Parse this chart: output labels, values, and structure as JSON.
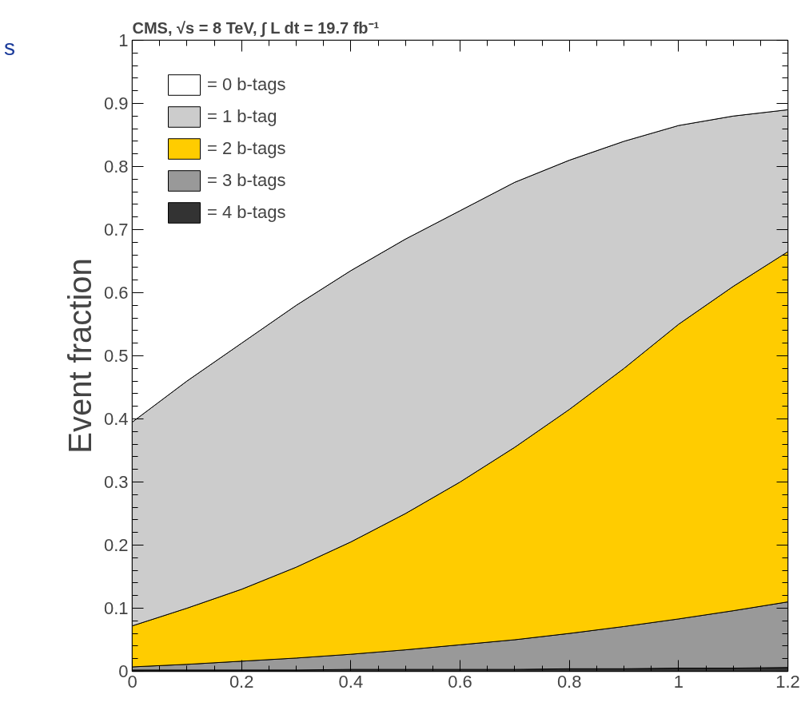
{
  "chart_data": {
    "type": "area",
    "stacked": true,
    "title": "CMS,  √s = 8 TeV, ∫ L dt = 19.7 fb⁻¹",
    "ylabel": "Event fraction",
    "annotations": [
      "s"
    ],
    "x": [
      0,
      0.1,
      0.2,
      0.3,
      0.4,
      0.5,
      0.6,
      0.7,
      0.8,
      0.9,
      1.0,
      1.1,
      1.2
    ],
    "series": [
      {
        "name": "= 4 b-tags",
        "color": "#333333",
        "values": [
          0.002,
          0.002,
          0.002,
          0.002,
          0.003,
          0.003,
          0.003,
          0.003,
          0.004,
          0.004,
          0.005,
          0.005,
          0.006
        ]
      },
      {
        "name": "= 3 b-tags",
        "color": "#999999",
        "values": [
          0.005,
          0.009,
          0.014,
          0.019,
          0.024,
          0.031,
          0.039,
          0.047,
          0.056,
          0.067,
          0.078,
          0.091,
          0.104
        ]
      },
      {
        "name": "= 2 b-tags",
        "color": "#ffcc00",
        "values": [
          0.065,
          0.089,
          0.114,
          0.144,
          0.178,
          0.216,
          0.258,
          0.305,
          0.355,
          0.409,
          0.467,
          0.514,
          0.555
        ]
      },
      {
        "name": "= 1 b-tag",
        "color": "#cccccc",
        "values": [
          0.323,
          0.36,
          0.39,
          0.415,
          0.43,
          0.435,
          0.43,
          0.42,
          0.395,
          0.36,
          0.315,
          0.27,
          0.225
        ]
      },
      {
        "name": "= 0 b-tags",
        "color": "#ffffff",
        "values": [
          0.605,
          0.54,
          0.48,
          0.42,
          0.365,
          0.315,
          0.27,
          0.225,
          0.19,
          0.16,
          0.135,
          0.12,
          0.11
        ]
      }
    ],
    "xlim": [
      0,
      1.2
    ],
    "ylim": [
      0,
      1
    ],
    "xticks": [
      0,
      0.2,
      0.4,
      0.6,
      0.8,
      1,
      1.2
    ],
    "yticks": [
      0,
      0.1,
      0.2,
      0.3,
      0.4,
      0.5,
      0.6,
      0.7,
      0.8,
      0.9,
      1
    ],
    "grid": false,
    "legend": "top left"
  }
}
